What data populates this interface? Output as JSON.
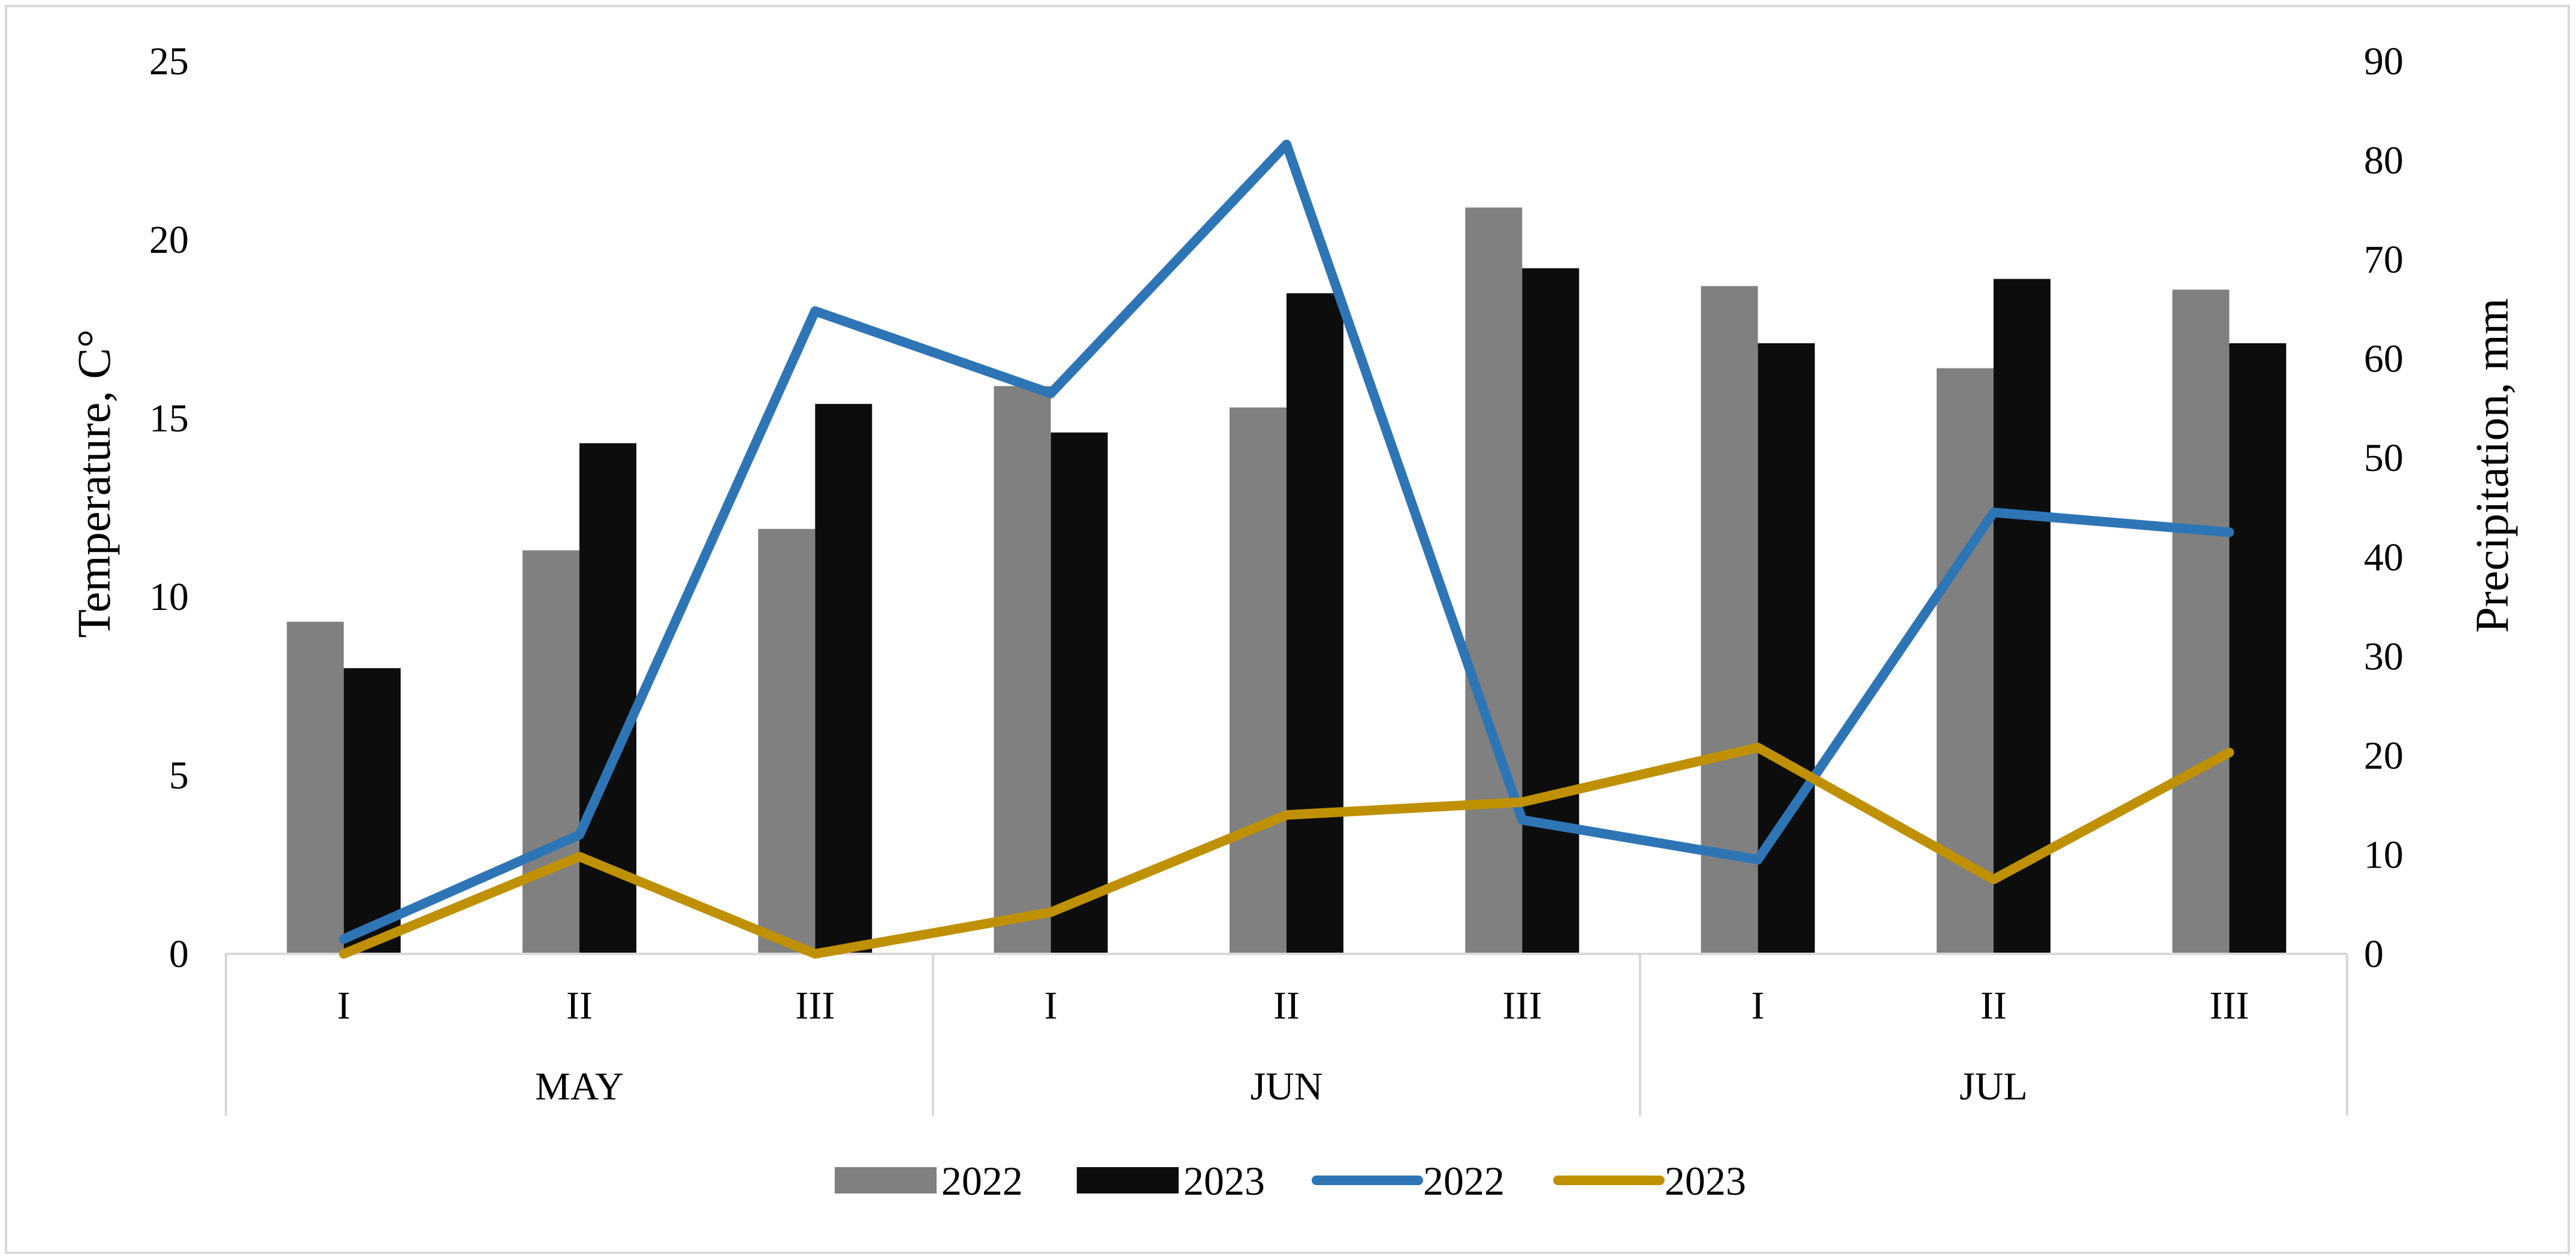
{
  "chart_data": {
    "type": "bar",
    "categories": [
      "I",
      "II",
      "III",
      "I",
      "II",
      "III",
      "I",
      "II",
      "III"
    ],
    "groups": [
      {
        "label": "MAY",
        "span": 3
      },
      {
        "label": "JUN",
        "span": 3
      },
      {
        "label": "JUL",
        "span": 3
      }
    ],
    "ylabel": "Temperature, C°",
    "y2label": "Precipitation, mm",
    "ylim": [
      0,
      25
    ],
    "y2lim": [
      0,
      90
    ],
    "yticks": [
      "0",
      "5",
      "10",
      "15",
      "20",
      "25"
    ],
    "y2ticks": [
      "0",
      "10",
      "20",
      "30",
      "40",
      "50",
      "60",
      "70",
      "80",
      "90"
    ],
    "grid": false,
    "legend_position": "bottom",
    "series": [
      {
        "name": "2022",
        "type": "bar",
        "axis": "left",
        "color": "#808080",
        "values": [
          9.3,
          11.3,
          11.9,
          15.9,
          15.3,
          20.9,
          18.7,
          16.4,
          18.6
        ]
      },
      {
        "name": "2023",
        "type": "bar",
        "axis": "left",
        "color": "#0d0d0d",
        "values": [
          8.0,
          14.3,
          15.4,
          14.6,
          18.5,
          19.2,
          17.1,
          18.9,
          17.1
        ]
      },
      {
        "name": "2022",
        "type": "line",
        "axis": "right",
        "color": "#2e75b6",
        "values": [
          1.5,
          12.0,
          64.8,
          56.5,
          81.6,
          13.5,
          9.5,
          44.5,
          42.5
        ]
      },
      {
        "name": "2023",
        "type": "line",
        "axis": "right",
        "color": "#bf9000",
        "values": [
          0.0,
          9.8,
          0.0,
          4.2,
          14.0,
          15.3,
          20.8,
          7.5,
          20.3
        ]
      }
    ]
  }
}
